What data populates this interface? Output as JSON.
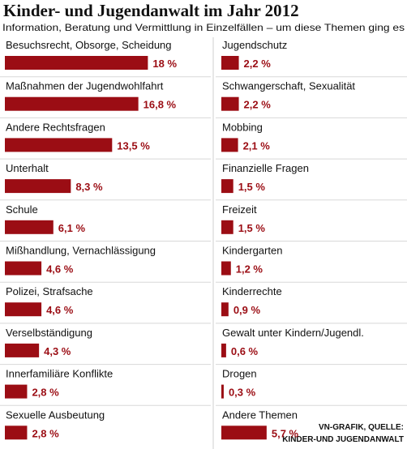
{
  "chart_data": {
    "type": "bar",
    "title": "Kinder- und Jugendanwalt im Jahr 2012",
    "subtitle": "Information, Beratung und Vermittlung in Einzelfällen – um diese Themen ging es",
    "categories": [
      "Besuchsrecht, Obsorge, Scheidung",
      "Maßnahmen der Jugendwohlfahrt",
      "Andere Rechtsfragen",
      "Unterhalt",
      "Schule",
      "Mißhandlung, Vernachlässigung",
      "Polizei, Strafsache",
      "Verselbständigung",
      "Innerfamiliäre Konflikte",
      "Sexuelle Ausbeutung",
      "Jugendschutz",
      "Schwangerschaft, Sexualität",
      "Mobbing",
      "Finanzielle Fragen",
      "Freizeit",
      "Kindergarten",
      "Kinderrechte",
      "Gewalt unter Kindern/Jugendl.",
      "Drogen",
      "Andere Themen"
    ],
    "values": [
      18,
      16.8,
      13.5,
      8.3,
      6.1,
      4.6,
      4.6,
      4.3,
      2.8,
      2.8,
      2.2,
      2.2,
      2.1,
      1.5,
      1.5,
      1.2,
      0.9,
      0.6,
      0.3,
      5.7
    ],
    "value_labels": [
      "18 %",
      "16,8 %",
      "13,5 %",
      "8,3 %",
      "6,1 %",
      "4,6 %",
      "4,6 %",
      "4,3 %",
      "2,8 %",
      "2,8 %",
      "2,2 %",
      "2,2 %",
      "2,1 %",
      "1,5 %",
      "1,5 %",
      "1,2 %",
      "0,9 %",
      "0,6 %",
      "0,3 %",
      "5,7 %"
    ],
    "color": "#9b0d14",
    "source": [
      "VN-GRAFIK, QUELLE:",
      "KINDER-UND JUGENDANWALT"
    ]
  }
}
